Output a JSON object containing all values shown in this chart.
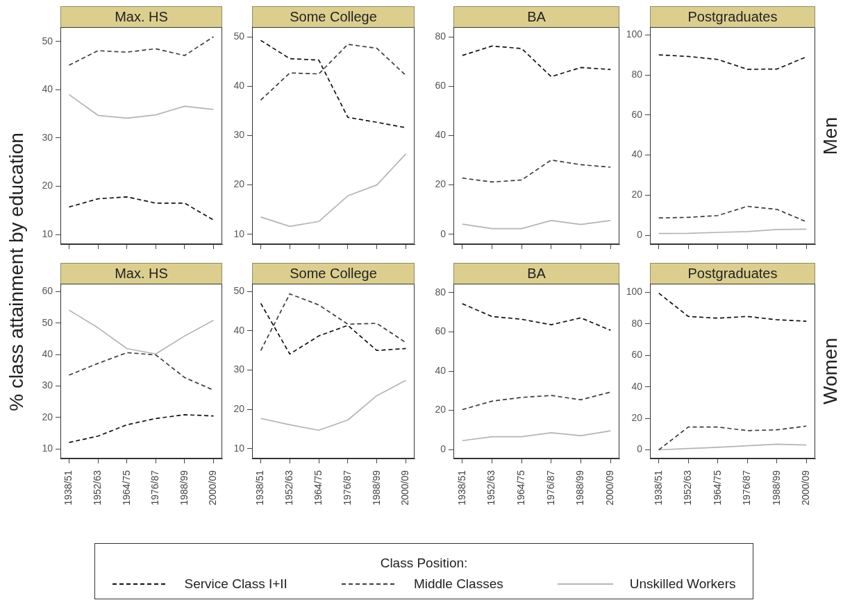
{
  "chart_data": [
    {
      "type": "line",
      "title": "Max. HS",
      "ylabel": "% class attainment by education",
      "legend": "bottom",
      "legend_title": "Class Position:",
      "tick_labels": "y",
      "categories": [
        "1938/51",
        "1952/63",
        "1964/75",
        "1976/87",
        "1988/99",
        "2000/09"
      ],
      "ylim": [
        8,
        53
      ],
      "yticks": [
        10,
        20,
        30,
        40,
        50
      ],
      "series": [
        {
          "name": "Service Class I+II",
          "color": "#111111",
          "line_style": "dashed",
          "values": [
            15.7,
            17.4,
            17.8,
            16.5,
            16.5,
            13.0
          ]
        },
        {
          "name": "Middle Classes",
          "color": "#3c3c3c",
          "line_style": "dashed",
          "values": [
            45.1,
            48.1,
            47.8,
            48.5,
            47.1,
            51.0
          ]
        },
        {
          "name": "Unskilled Workers",
          "color": "#b4b4b4",
          "line_style": "solid",
          "values": [
            39.0,
            34.7,
            34.1,
            34.8,
            36.6,
            35.9
          ]
        }
      ]
    },
    {
      "type": "line",
      "title": "Some College",
      "tick_labels": "y",
      "categories": [
        "1938/51",
        "1952/63",
        "1964/75",
        "1976/87",
        "1988/99",
        "2000/09"
      ],
      "ylim": [
        8,
        52
      ],
      "yticks": [
        10,
        20,
        30,
        40,
        50
      ],
      "series": [
        {
          "color": "#111111",
          "line_style": "dashed",
          "values": [
            49.3,
            45.6,
            45.3,
            33.7,
            32.7,
            31.6
          ]
        },
        {
          "color": "#3c3c3c",
          "line_style": "dashed",
          "values": [
            37.2,
            42.7,
            42.5,
            48.5,
            47.7,
            42.2
          ]
        },
        {
          "color": "#b4b4b4",
          "line_style": "solid",
          "values": [
            13.5,
            11.6,
            12.6,
            17.8,
            20.0,
            26.3
          ]
        }
      ]
    },
    {
      "type": "line",
      "title": "BA",
      "tick_labels": "y",
      "categories": [
        "1938/51",
        "1952/63",
        "1964/75",
        "1976/87",
        "1988/99",
        "2000/09"
      ],
      "ylim": [
        -4,
        84
      ],
      "yticks": [
        0,
        20,
        40,
        60,
        80
      ],
      "series": [
        {
          "color": "#111111",
          "line_style": "dashed",
          "values": [
            72.5,
            76.3,
            75.3,
            63.9,
            67.6,
            66.8
          ]
        },
        {
          "color": "#3c3c3c",
          "line_style": "dashed",
          "values": [
            22.8,
            21.2,
            22.0,
            30.1,
            28.2,
            27.2
          ]
        },
        {
          "color": "#b4b4b4",
          "line_style": "solid",
          "values": [
            4.1,
            2.3,
            2.3,
            5.6,
            4.0,
            5.6
          ]
        }
      ]
    },
    {
      "type": "line",
      "title": "Postgraduates",
      "annotations": [
        "Men"
      ],
      "tick_labels": "y",
      "categories": [
        "1938/51",
        "1952/63",
        "1964/75",
        "1976/87",
        "1988/99",
        "2000/09"
      ],
      "ylim": [
        -4.5,
        104
      ],
      "yticks": [
        0,
        20,
        40,
        60,
        80,
        100
      ],
      "series": [
        {
          "color": "#111111",
          "line_style": "dashed",
          "values": [
            90.1,
            89.3,
            87.8,
            82.9,
            83.0,
            89.1
          ]
        },
        {
          "color": "#3c3c3c",
          "line_style": "dashed",
          "values": [
            8.6,
            8.9,
            9.8,
            14.4,
            12.9,
            6.7
          ]
        },
        {
          "color": "#b4b4b4",
          "line_style": "solid",
          "values": [
            0.8,
            0.9,
            1.4,
            1.8,
            2.8,
            3.0
          ]
        }
      ]
    },
    {
      "type": "line",
      "title": "Max. HS",
      "categories": [
        "1938/51",
        "1952/63",
        "1964/75",
        "1976/87",
        "1988/99",
        "2000/09"
      ],
      "ylim": [
        7,
        62.5
      ],
      "yticks": [
        10,
        20,
        30,
        40,
        50,
        60
      ],
      "series": [
        {
          "color": "#111111",
          "line_style": "dashed",
          "values": [
            12.1,
            14.1,
            17.7,
            19.7,
            20.9,
            20.5
          ]
        },
        {
          "color": "#3c3c3c",
          "line_style": "dashed",
          "values": [
            33.5,
            37.2,
            40.6,
            39.9,
            32.7,
            28.7
          ]
        },
        {
          "color": "#b4b4b4",
          "line_style": "solid",
          "values": [
            54.1,
            48.5,
            41.9,
            40.2,
            45.9,
            50.9
          ]
        }
      ]
    },
    {
      "type": "line",
      "title": "Some College",
      "categories": [
        "1938/51",
        "1952/63",
        "1964/75",
        "1976/87",
        "1988/99",
        "2000/09"
      ],
      "ylim": [
        7.5,
        52
      ],
      "yticks": [
        10,
        20,
        30,
        40,
        50
      ],
      "series": [
        {
          "color": "#111111",
          "line_style": "dashed",
          "values": [
            47.0,
            34.1,
            38.7,
            41.4,
            35.0,
            35.5
          ]
        },
        {
          "color": "#3c3c3c",
          "line_style": "dashed",
          "values": [
            35.0,
            49.4,
            46.6,
            41.7,
            41.9,
            37.0
          ]
        },
        {
          "color": "#b4b4b4",
          "line_style": "solid",
          "values": [
            17.7,
            16.1,
            14.7,
            17.3,
            23.5,
            27.4
          ]
        }
      ]
    },
    {
      "type": "line",
      "title": "BA",
      "categories": [
        "1938/51",
        "1952/63",
        "1964/75",
        "1976/87",
        "1988/99",
        "2000/09"
      ],
      "ylim": [
        -4.5,
        84.5
      ],
      "yticks": [
        0,
        20,
        40,
        60,
        80
      ],
      "series": [
        {
          "color": "#111111",
          "line_style": "dashed",
          "values": [
            74.3,
            67.8,
            66.4,
            63.6,
            67.1,
            60.8
          ]
        },
        {
          "color": "#3c3c3c",
          "line_style": "dashed",
          "values": [
            20.4,
            24.7,
            26.6,
            27.6,
            25.4,
            29.3
          ]
        },
        {
          "color": "#b4b4b4",
          "line_style": "solid",
          "values": [
            4.6,
            6.6,
            6.6,
            8.6,
            7.1,
            9.6
          ]
        }
      ]
    },
    {
      "type": "line",
      "title": "Postgraduates",
      "annotations": [
        "Women"
      ],
      "categories": [
        "1938/51",
        "1952/63",
        "1964/75",
        "1976/87",
        "1988/99",
        "2000/09"
      ],
      "ylim": [
        -5.5,
        105.5
      ],
      "yticks": [
        0,
        20,
        40,
        60,
        80,
        100
      ],
      "series": [
        {
          "color": "#111111",
          "line_style": "dashed",
          "values": [
            99.5,
            84.7,
            83.6,
            84.7,
            82.6,
            81.7
          ]
        },
        {
          "color": "#3c3c3c",
          "line_style": "dashed",
          "values": [
            0.0,
            14.5,
            14.5,
            12.2,
            12.7,
            15.1
          ]
        },
        {
          "color": "#b4b4b4",
          "line_style": "solid",
          "values": [
            0.0,
            0.8,
            1.6,
            2.6,
            3.6,
            3.0
          ]
        }
      ]
    }
  ]
}
